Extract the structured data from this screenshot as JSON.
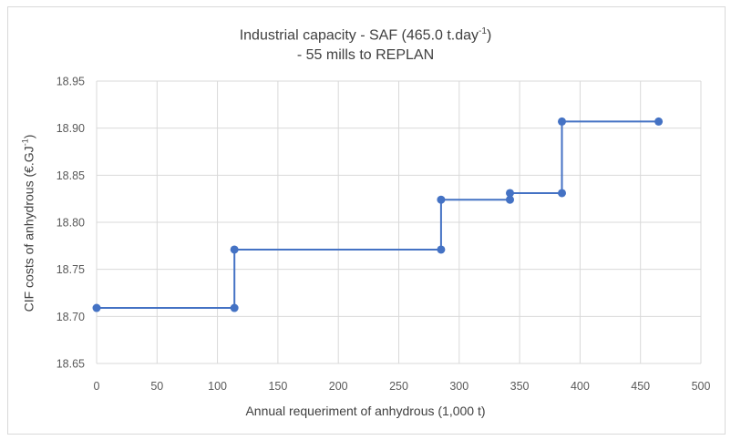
{
  "chart_data": {
    "type": "line",
    "title_line1_pre": "Industrial capacity - SAF (465.0 t.day",
    "title_line1_sup": "-1",
    "title_line1_post": ")",
    "title_line2": "- 55 mills to REPLAN",
    "xlabel": "Annual requeriment of anhydrous (1,000 t)",
    "ylabel_pre": "CIF costs of anhydrous (€.GJ",
    "ylabel_sup": "-1",
    "ylabel_post": ")",
    "xlim": [
      0,
      500
    ],
    "ylim": [
      18.65,
      18.95
    ],
    "xticks": [
      "0",
      "50",
      "100",
      "150",
      "200",
      "250",
      "300",
      "350",
      "400",
      "450",
      "500"
    ],
    "yticks": [
      "18.65",
      "18.70",
      "18.75",
      "18.80",
      "18.85",
      "18.90",
      "18.95"
    ],
    "grid": true,
    "series": [
      {
        "color": "#4472c4",
        "x": [
          0,
          114,
          114,
          285,
          285,
          342,
          342,
          385,
          385,
          465
        ],
        "y": [
          18.709,
          18.709,
          18.771,
          18.771,
          18.824,
          18.824,
          18.831,
          18.831,
          18.907,
          18.907
        ]
      }
    ]
  }
}
